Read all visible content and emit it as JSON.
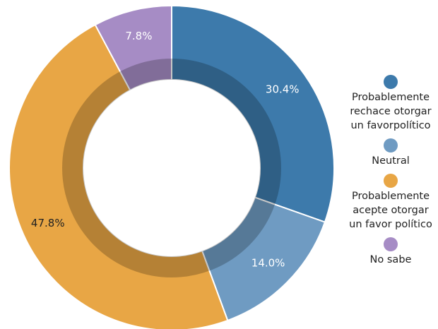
{
  "chart_data": {
    "type": "donut",
    "series": [
      {
        "name": "Probablemente rechace otorgar un favorpolítico",
        "color": "#3d7aab",
        "values": [
          30.4
        ],
        "value_labels": [
          "30.4%"
        ]
      },
      {
        "name": "Neutral",
        "color": "#6f9bc2",
        "values": [
          14.0
        ],
        "value_labels": [
          "14.0%"
        ]
      },
      {
        "name": "Probablemente acepte otorgar un favor político",
        "color": "#e8a645",
        "values": [
          47.8
        ],
        "value_labels": [
          "47.8%"
        ]
      },
      {
        "name": "No sabe",
        "color": "#a68cc5",
        "values": [
          7.8
        ],
        "value_labels": [
          "7.8%"
        ]
      }
    ],
    "legend": "right"
  }
}
